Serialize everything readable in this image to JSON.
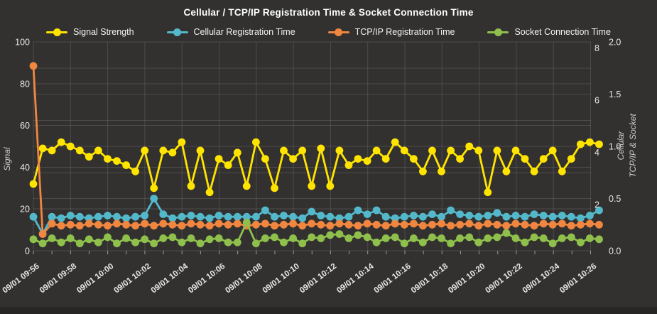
{
  "title": "Cellular / TCP/IP Registration Time & Socket Connection Time",
  "colors": {
    "background": "#323130",
    "footer_strip": "#272625",
    "grid": "rgba(255,255,255,0.13)",
    "axis_tick": "#9a9a9a",
    "title_text": "#ffffff",
    "tick_text": "#e8e8e8",
    "axis_title_text": "#cccccc",
    "signal_strength": "#ffe400",
    "cellular_registration": "#54b8cb",
    "tcpip_registration": "#f0863f",
    "socket_connection": "#8fc04c"
  },
  "axes": {
    "left": {
      "title": "Signal",
      "range": [
        0,
        100
      ],
      "ticks": [
        "0",
        "20",
        "40",
        "60",
        "80",
        "100"
      ]
    },
    "right_inner": {
      "title": "Cellular",
      "range": [
        0,
        8
      ],
      "ticks": [
        "2",
        "4",
        "6",
        "8"
      ]
    },
    "right_outer": {
      "title": "TCP/IP & Socket",
      "range": [
        0,
        2
      ],
      "ticks": [
        "0.0",
        "0.5",
        "1.0",
        "1.5",
        "2.0"
      ]
    }
  },
  "chart_data": {
    "type": "line",
    "x_tick_labels": [
      "09/01 09:56",
      "09/01 09:58",
      "09/01 10:00",
      "09/01 10:02",
      "09/01 10:04",
      "09/01 10:06",
      "09/01 10:08",
      "09/01 10:10",
      "09/01 10:12",
      "09/01 10:14",
      "09/01 10:16",
      "09/01 10:18",
      "09/01 10:20",
      "09/01 10:22",
      "09/01 10:24",
      "09/01 10:26"
    ],
    "points_per_x_interval": 4,
    "sample_interval": "30s",
    "legend_position": "top-center",
    "grid": true,
    "series": [
      {
        "name": "Signal Strength",
        "color_key": "signal_strength",
        "axis": "left",
        "values": [
          32,
          49,
          48,
          52,
          50,
          48,
          45,
          48,
          44,
          43,
          41,
          38,
          48,
          30,
          48,
          47,
          52,
          31,
          48,
          28,
          44,
          41,
          47,
          31,
          52,
          44,
          30,
          48,
          44,
          48,
          31,
          49,
          31,
          48,
          41,
          44,
          43,
          48,
          44,
          52,
          48,
          44,
          38,
          48,
          38,
          48,
          44,
          50,
          48,
          28,
          48,
          38,
          48,
          44,
          38,
          44,
          48,
          38,
          44,
          51,
          52,
          51
        ]
      },
      {
        "name": "Cellular Registration Time",
        "color_key": "cellular_registration",
        "axis": "right_inner",
        "values": [
          1.3,
          0.65,
          1.3,
          1.25,
          1.35,
          1.3,
          1.25,
          1.3,
          1.35,
          1.3,
          1.25,
          1.3,
          1.35,
          2.0,
          1.4,
          1.25,
          1.3,
          1.35,
          1.3,
          1.25,
          1.35,
          1.3,
          1.3,
          1.3,
          1.3,
          1.55,
          1.3,
          1.35,
          1.3,
          1.25,
          1.5,
          1.35,
          1.3,
          1.25,
          1.3,
          1.55,
          1.4,
          1.55,
          1.3,
          1.25,
          1.3,
          1.35,
          1.3,
          1.4,
          1.3,
          1.55,
          1.4,
          1.35,
          1.3,
          1.35,
          1.45,
          1.3,
          1.35,
          1.3,
          1.4,
          1.35,
          1.3,
          1.35,
          1.3,
          1.25,
          1.35,
          1.55
        ]
      },
      {
        "name": "TCP/IP Registration Time",
        "color_key": "tcpip_registration",
        "axis": "right_outer",
        "values": [
          1.77,
          0.16,
          0.26,
          0.24,
          0.25,
          0.24,
          0.26,
          0.25,
          0.24,
          0.26,
          0.25,
          0.24,
          0.26,
          0.24,
          0.26,
          0.25,
          0.24,
          0.26,
          0.25,
          0.24,
          0.26,
          0.25,
          0.26,
          0.24,
          0.25,
          0.26,
          0.24,
          0.25,
          0.26,
          0.24,
          0.26,
          0.25,
          0.24,
          0.26,
          0.25,
          0.24,
          0.26,
          0.25,
          0.24,
          0.26,
          0.25,
          0.26,
          0.24,
          0.25,
          0.26,
          0.24,
          0.25,
          0.26,
          0.24,
          0.26,
          0.25,
          0.24,
          0.26,
          0.25,
          0.24,
          0.26,
          0.25,
          0.26,
          0.24,
          0.25,
          0.26,
          0.25
        ]
      },
      {
        "name": "Socket Connection Time",
        "color_key": "socket_connection",
        "axis": "right_outer",
        "values": [
          0.11,
          0.07,
          0.12,
          0.08,
          0.12,
          0.07,
          0.11,
          0.08,
          0.13,
          0.07,
          0.12,
          0.08,
          0.11,
          0.07,
          0.12,
          0.13,
          0.08,
          0.12,
          0.07,
          0.11,
          0.12,
          0.08,
          0.08,
          0.27,
          0.07,
          0.12,
          0.13,
          0.08,
          0.12,
          0.07,
          0.13,
          0.12,
          0.15,
          0.16,
          0.12,
          0.15,
          0.13,
          0.08,
          0.12,
          0.13,
          0.07,
          0.12,
          0.08,
          0.13,
          0.12,
          0.07,
          0.12,
          0.13,
          0.08,
          0.12,
          0.13,
          0.17,
          0.12,
          0.08,
          0.13,
          0.12,
          0.07,
          0.12,
          0.13,
          0.08,
          0.12,
          0.11
        ]
      }
    ]
  }
}
